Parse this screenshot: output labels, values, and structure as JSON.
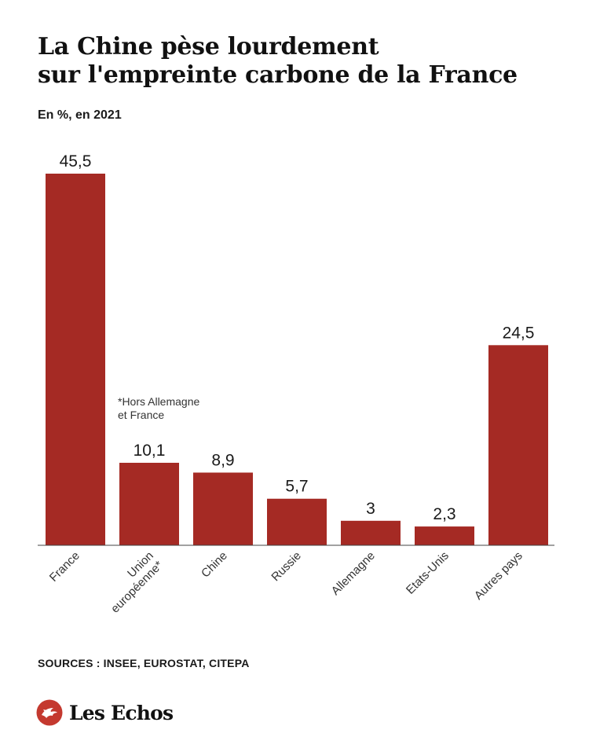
{
  "header": {
    "title_line1": "La Chine pèse lourdement",
    "title_line2": "sur l'empreinte carbone de la France",
    "subtitle": "En %, en 2021"
  },
  "chart_data": {
    "type": "bar",
    "title": "La Chine pèse lourdement sur l'empreinte carbone de la France",
    "subtitle": "En %, en 2021",
    "categories": [
      [
        "France"
      ],
      [
        "Union",
        "européenne*"
      ],
      [
        "Chine"
      ],
      [
        "Russie"
      ],
      [
        "Allemagne"
      ],
      [
        "Etats-Unis"
      ],
      [
        "Autres pays"
      ]
    ],
    "values": [
      45.5,
      10.1,
      8.9,
      5.7,
      3,
      2.3,
      24.5
    ],
    "value_labels": [
      "45,5",
      "10,1",
      "8,9",
      "5,7",
      "3",
      "2,3",
      "24,5"
    ],
    "annotation": [
      "*Hors Allemagne",
      "et France"
    ],
    "ylim": [
      0,
      45.5
    ],
    "bar_color": "#a52a24",
    "grid": false,
    "xlabel": "",
    "ylabel": ""
  },
  "footer": {
    "sources": "SOURCES : INSEE, EUROSTAT, CITEPA",
    "brand": "Les Echos",
    "brand_icon": "les-echos-logo-icon"
  },
  "colors": {
    "bar": "#a52a24",
    "logo": "#c4392f",
    "text": "#1a1a1a"
  }
}
